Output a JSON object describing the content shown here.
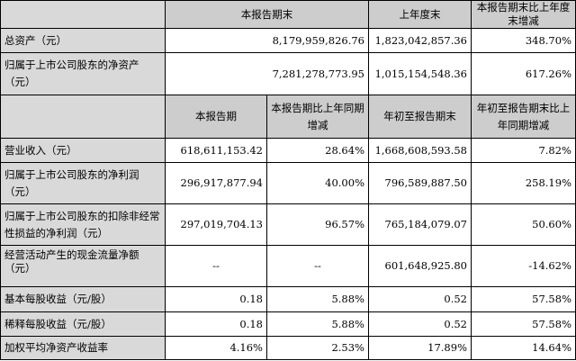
{
  "top_headers": [
    "本报告期末",
    "上年度末",
    "本报告期末比上年度末增减"
  ],
  "top_rows": [
    {
      "label": "总资产（元）",
      "values": [
        "8,179,959,826.76",
        "1,823,042,857.36",
        "348.70%"
      ]
    },
    {
      "label": "归属于上市公司股东的净资产（元）",
      "values": [
        "7,281,278,773.95",
        "1,015,154,548.36",
        "617.26%"
      ]
    }
  ],
  "mid_headers": [
    "本报告期",
    "本报告期比上年同期增减",
    "年初至报告期末",
    "年初至报告期末比上年同期增减"
  ],
  "rows": [
    {
      "label": "营业收入（元）",
      "values": [
        "618,611,153.42",
        "28.64%",
        "1,668,608,593.58",
        "7.82%"
      ]
    },
    {
      "label": "归属于上市公司股东的净利润（元）",
      "values": [
        "296,917,877.94",
        "40.00%",
        "796,589,887.50",
        "258.19%"
      ]
    },
    {
      "label": "归属于上市公司股东的扣除非经常性损益的净利润（元）",
      "values": [
        "297,019,704.13",
        "96.57%",
        "765,184,079.07",
        "50.60%"
      ]
    },
    {
      "label": "经营活动产生的现金流量净额（元）",
      "values": [
        "--",
        "--",
        "601,648,925.80",
        "-14.62%"
      ]
    },
    {
      "label": "基本每股收益（元/股）",
      "values": [
        "0.18",
        "5.88%",
        "0.52",
        "57.58%"
      ]
    },
    {
      "label": "稀释每股收益（元/股）",
      "values": [
        "0.18",
        "5.88%",
        "0.52",
        "57.58%"
      ]
    },
    {
      "label": "加权平均净资产收益率",
      "values": [
        "4.16%",
        "2.53%",
        "17.89%",
        "14.64%"
      ]
    }
  ]
}
